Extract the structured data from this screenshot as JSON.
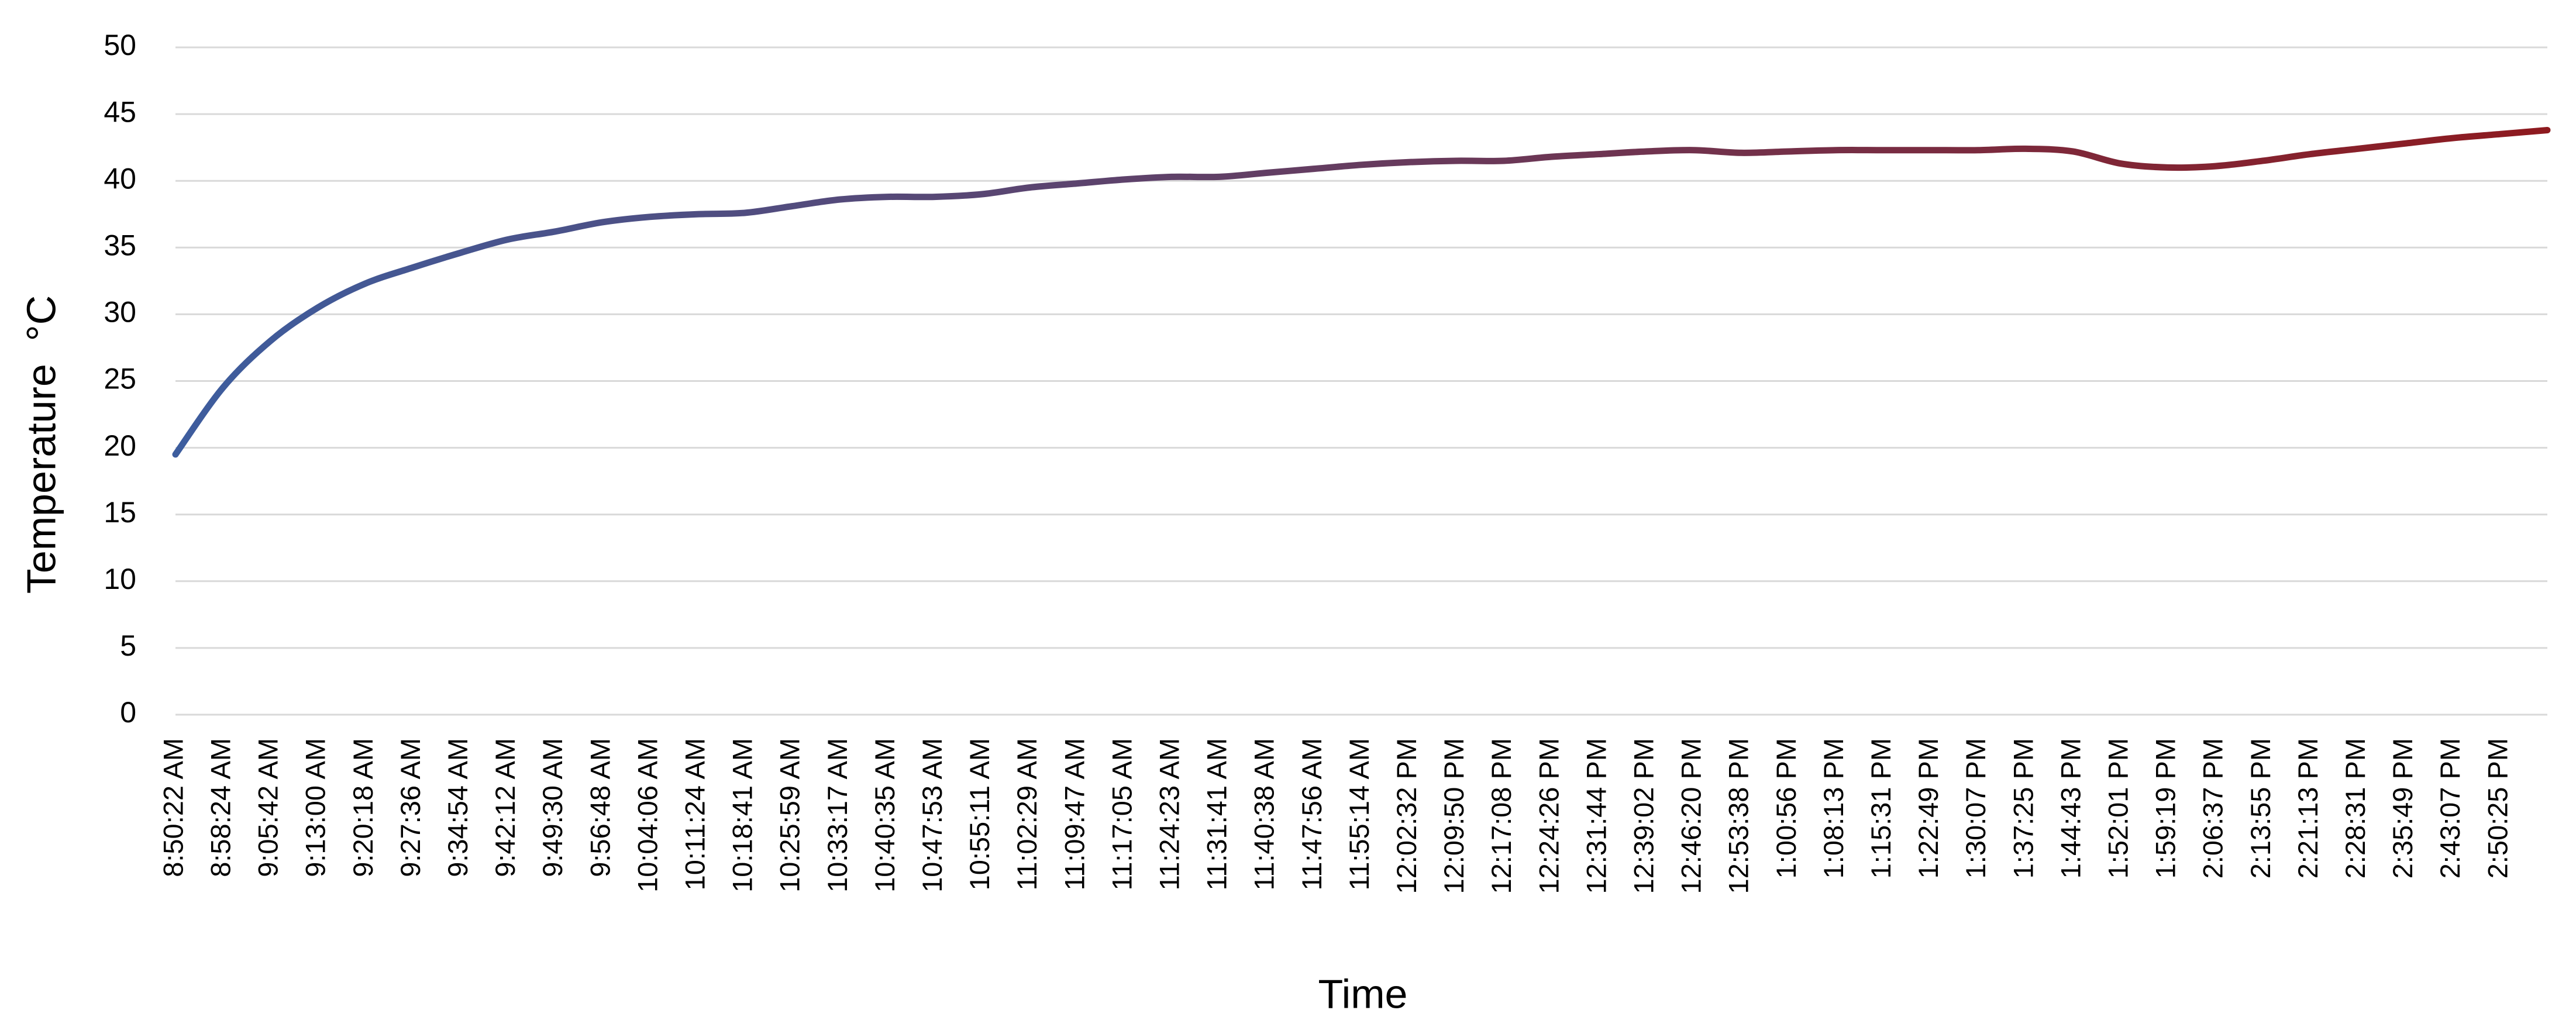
{
  "chart_data": {
    "type": "line",
    "x_label": "Time",
    "y_label": "Temperature  °C",
    "categories": [
      "8:50:22 AM",
      "8:58:24 AM",
      "9:05:42 AM",
      "9:13:00 AM",
      "9:20:18 AM",
      "9:27:36 AM",
      "9:34:54 AM",
      "9:42:12 AM",
      "9:49:30 AM",
      "9:56:48 AM",
      "10:04:06 AM",
      "10:11:24 AM",
      "10:18:41 AM",
      "10:25:59 AM",
      "10:33:17 AM",
      "10:40:35 AM",
      "10:47:53 AM",
      "10:55:11 AM",
      "11:02:29 AM",
      "11:09:47 AM",
      "11:17:05 AM",
      "11:24:23 AM",
      "11:31:41 AM",
      "11:40:38 AM",
      "11:47:56 AM",
      "11:55:14 AM",
      "12:02:32 PM",
      "12:09:50 PM",
      "12:17:08 PM",
      "12:24:26 PM",
      "12:31:44 PM",
      "12:39:02 PM",
      "12:46:20 PM",
      "12:53:38 PM",
      "1:00:56 PM",
      "1:08:13 PM",
      "1:15:31 PM",
      "1:22:49 PM",
      "1:30:07 PM",
      "1:37:25 PM",
      "1:44:43 PM",
      "1:52:01 PM",
      "1:59:19 PM",
      "2:06:37 PM",
      "2:13:55 PM",
      "2:21:13 PM",
      "2:28:31 PM",
      "2:35:49 PM",
      "2:43:07 PM",
      "2:50:25 PM",
      null
    ],
    "values": [
      19.5,
      24.5,
      28,
      30.5,
      32.3,
      33.5,
      34.6,
      35.6,
      36.2,
      36.9,
      37.3,
      37.5,
      37.6,
      38.1,
      38.6,
      38.8,
      38.8,
      39.0,
      39.5,
      39.8,
      40.1,
      40.3,
      40.3,
      40.6,
      40.9,
      41.2,
      41.4,
      41.5,
      41.5,
      41.8,
      42.0,
      42.2,
      42.3,
      42.1,
      42.2,
      42.3,
      42.3,
      42.3,
      42.3,
      42.4,
      42.2,
      41.3,
      41.0,
      41.1,
      41.5,
      42.0,
      42.4,
      42.8,
      43.2,
      43.5,
      43.8
    ],
    "colors": [
      "#3d5d9e",
      "#8e1a1f"
    ],
    "ylim": [
      0,
      50
    ],
    "yticks": [
      0,
      5,
      10,
      15,
      20,
      25,
      30,
      35,
      40,
      45,
      50
    ],
    "grid": true
  }
}
